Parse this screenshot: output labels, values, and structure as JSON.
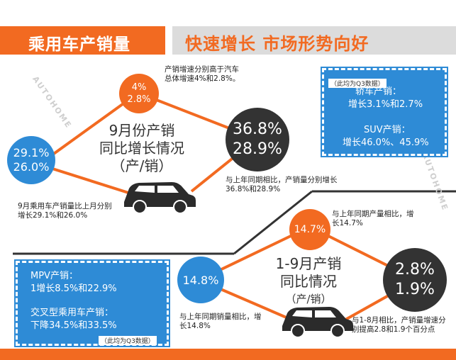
{
  "header": {
    "left_title": "乘用车产销量",
    "right_title": "快速增长 市场形势向好"
  },
  "section_sept": {
    "title_line1": "9月份产销",
    "title_line2": "同比增长情况",
    "title_line3": "（产/销）",
    "mom_circle": {
      "prod": "29.1%",
      "sales": "26.0%"
    },
    "mom_note": "9月乘用车产销量比上月分别增长29.1%和26.0%",
    "vs_total_circle": {
      "prod": "4%",
      "sales": "2.8%"
    },
    "vs_total_note": "产销增速分别高于汽车总体增速4%和2.8%。",
    "yoy_circle": {
      "prod": "36.8%",
      "sales": "28.9%"
    },
    "yoy_note": "与上年同期相比，产销量分别增长36.8%和28.9%"
  },
  "q3_box_top": {
    "note": "（此均为Q3数据）",
    "sedan_label": "轿车产销：",
    "sedan_value": "增长3.1%和2.7%",
    "suv_label": "SUV产销：",
    "suv_value": "增长46.0%、45.9%"
  },
  "section_jan_sep": {
    "title_line1": "1-9月产销",
    "title_line2": "同比情况",
    "title_line3": "（产/销）",
    "prod_circle": "14.7%",
    "prod_note": "与上年同期产量相比，增长14.7%",
    "sales_circle": "14.8%",
    "sales_note": "与上年同期销量相比，增长14.8%",
    "vs_jan_aug_circle": {
      "prod": "2.8%",
      "sales": "1.9%"
    },
    "vs_jan_aug_note": "与1-8月相比，产销量增速分别提高2.8和1.9个百分点"
  },
  "q3_box_bottom": {
    "mpv_label": "MPV产销：",
    "mpv_value": "1增长8.5%和22.9%",
    "crossover_label": "交叉型乘用车产销：",
    "crossover_value": "下降34.5%和33.5%",
    "note": "（此均为Q3数据）"
  },
  "watermark": {
    "text": "AUTOHOME"
  },
  "colors": {
    "orange": "#f26a21",
    "blue": "#2e8bd6",
    "dark": "#333333",
    "gray": "#dcdcdc"
  }
}
